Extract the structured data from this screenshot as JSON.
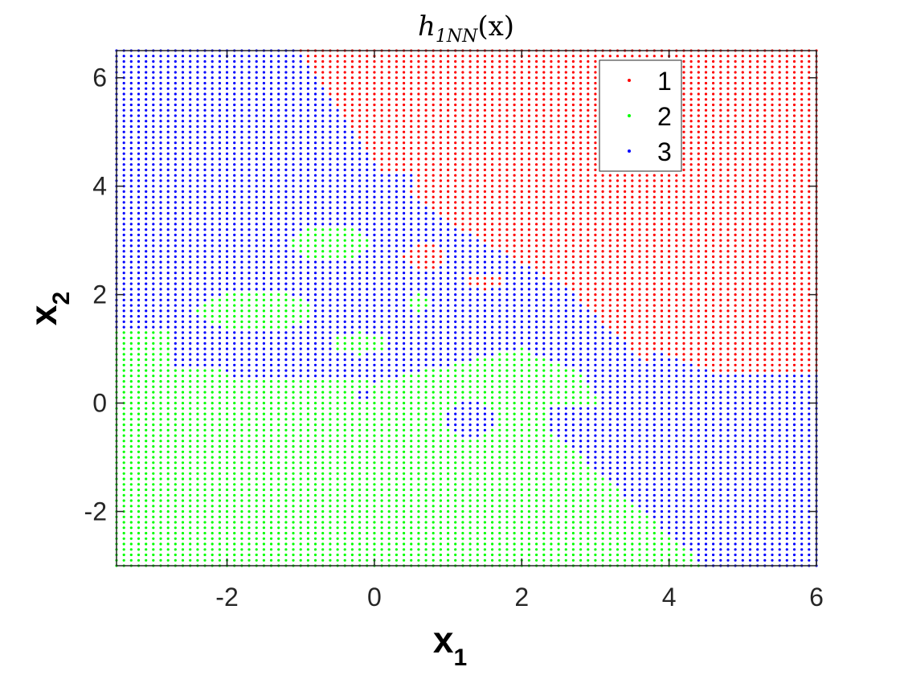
{
  "chart_data": {
    "type": "scatter",
    "title": "h1NN(x)",
    "title_parts": {
      "main": "h",
      "sub": "1NN",
      "arg": "(x)"
    },
    "xlabel": "x1",
    "xlabel_parts": {
      "main": "x",
      "sub": "1"
    },
    "ylabel": "x2",
    "ylabel_parts": {
      "main": "x",
      "sub": "2"
    },
    "xlim": [
      -3.5,
      6
    ],
    "ylim": [
      -3,
      6.5
    ],
    "xticks": [
      -2,
      0,
      2,
      4,
      6
    ],
    "yticks": [
      -2,
      0,
      2,
      4,
      6
    ],
    "xtick_labels": [
      "-2",
      "0",
      "2",
      "4",
      "6"
    ],
    "ytick_labels": [
      "-2",
      "0",
      "2",
      "4",
      "6"
    ],
    "grid": false,
    "grid_step": 0.1,
    "legend_position": "top-right",
    "series": [
      {
        "name": "1",
        "color": "#ff0000",
        "region": "upper-right"
      },
      {
        "name": "2",
        "color": "#00ff00",
        "region": "lower-left"
      },
      {
        "name": "3",
        "color": "#0000ff",
        "region": "middle band"
      }
    ]
  }
}
